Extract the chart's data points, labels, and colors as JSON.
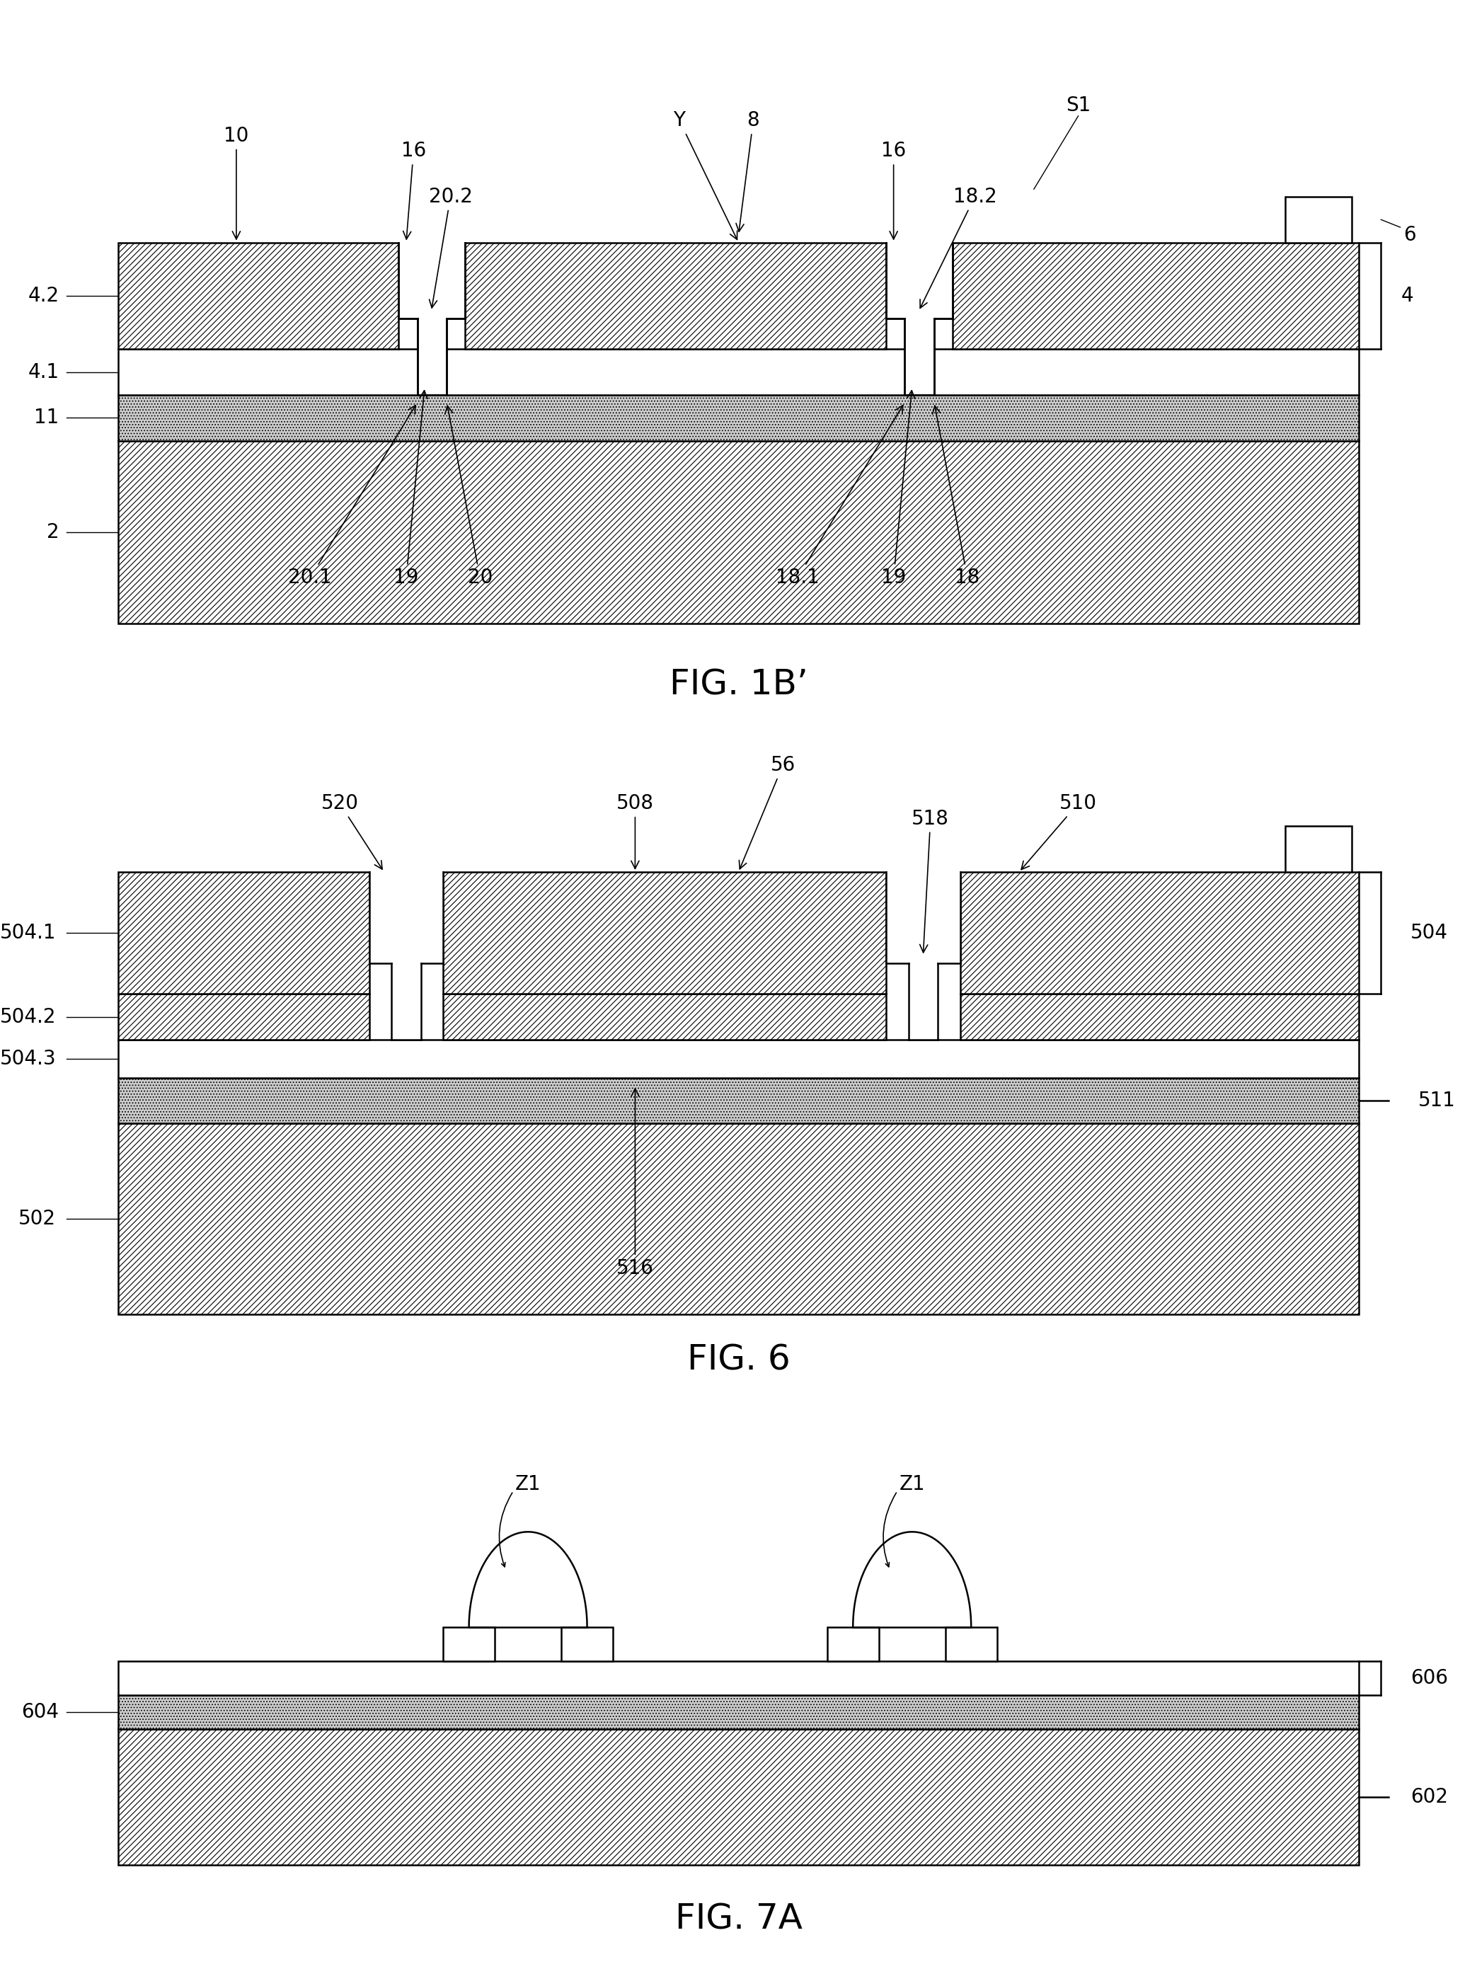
{
  "bg_color": "#ffffff",
  "line_color": "#000000",
  "fig1b_title": "FIG. 1B’",
  "fig6_title": "FIG. 6",
  "fig7a_title": "FIG. 7A",
  "fig_title_fontsize": 36,
  "label_fontsize": 20,
  "lw": 1.8,
  "hatch_lw": 0.8
}
